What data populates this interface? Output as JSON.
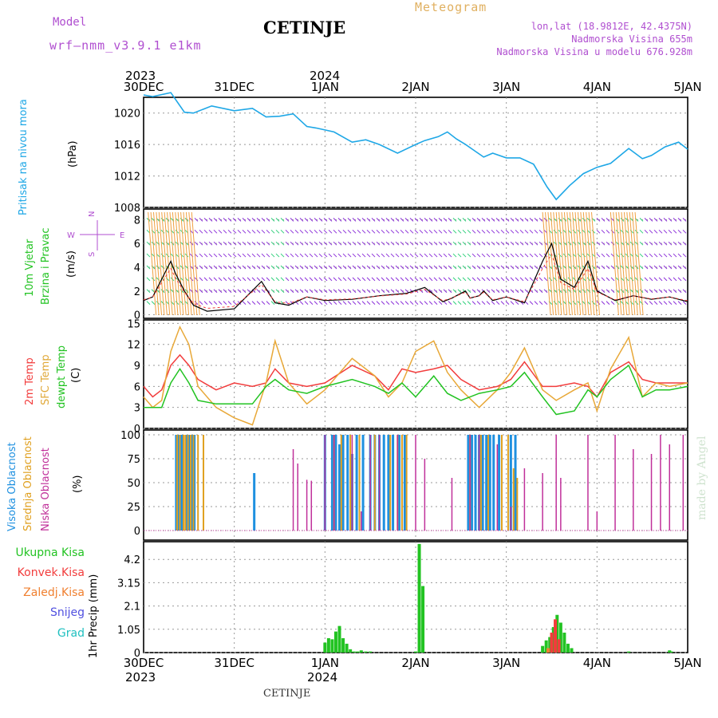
{
  "header": {
    "model_label": "Model",
    "model_name": "wrf—nmm_v3.9.1 e1km",
    "station": "CETINJE",
    "meteogram": "Meteogram",
    "lonlat": "lon,lat (18.9812E, 42.4375N)",
    "elevation": "Nadmorska Visina 655m",
    "model_elevation": "Nadmorska Visina u modelu 676.928m"
  },
  "footer_station": "CETINJE",
  "watermark": "made by Angel",
  "colors": {
    "pressure": "#1ea7e6",
    "temp2m": "#f23c3c",
    "sfc": "#e8a838",
    "dew": "#22c322",
    "purple": "#b04fd0",
    "total": "#22c322",
    "convective": "#f23c3c",
    "frozen": "#f08030",
    "snow": "#5050e0",
    "grad": "#20c0c0",
    "high_cloud": "#1e90e0",
    "mid_cloud": "#e0a020",
    "low_cloud": "#c0309a"
  },
  "top_axis": {
    "year_left": "2023",
    "year_mid": "2024",
    "labels": [
      "30DEC",
      "31DEC",
      "1JAN",
      "2JAN",
      "3JAN",
      "4JAN",
      "5JAN"
    ]
  },
  "bottom_axis": {
    "year_left": "2023",
    "year_mid": "2024",
    "labels": [
      "30DEC",
      "31DEC",
      "1JAN",
      "2JAN",
      "3JAN",
      "4JAN",
      "5JAN"
    ]
  },
  "panels": {
    "pressure": {
      "title": "Pritisak na nivou mora",
      "unit": "(hPa)",
      "ticks": [
        "1020",
        "1016",
        "1012",
        "1008"
      ]
    },
    "wind": {
      "title1": "10m Vjetar",
      "title2": "Brzina i Pravac",
      "unit": "(m/s)",
      "compass_n": "N",
      "compass_s": "S",
      "compass_w": "W",
      "compass_e": "E",
      "ticks": [
        "8",
        "6",
        "4",
        "2",
        "0"
      ]
    },
    "temp": {
      "title1": "2m Temp",
      "title2": "SFC Temp",
      "title3": "dewpt Temp",
      "unit": "(C)",
      "ticks": [
        "15",
        "12",
        "9",
        "6",
        "3",
        "0"
      ]
    },
    "cloud": {
      "title1": "Visoka Oblacnost",
      "title2": "Srednja Oblacnost",
      "title3": "Niska Oblacnost",
      "unit": "(%)",
      "ticks": [
        "100",
        "75",
        "50",
        "25",
        "0"
      ]
    },
    "precip": {
      "legend": [
        "Ukupna Kisa",
        "Konvek.Kisa",
        "Zaledj.Kisa",
        "Snijeg",
        "Grad"
      ],
      "unit": "1hr Precip (mm)",
      "ticks": [
        "4.2",
        "3.15",
        "2.1",
        "1.05",
        "0"
      ]
    }
  },
  "chart_data": {
    "type": "line",
    "x_range_days": [
      "30DEC 2023",
      "5JAN 2024"
    ],
    "pressure": {
      "ylabel": "Pritisak na nivou mora (hPa)",
      "ylim": [
        1008,
        1022
      ],
      "x": [
        0,
        0.1,
        0.3,
        0.45,
        0.55,
        0.75,
        1.0,
        1.2,
        1.35,
        1.5,
        1.65,
        1.8,
        1.9,
        2.1,
        2.3,
        2.45,
        2.6,
        2.8,
        3.0,
        3.1,
        3.25,
        3.35,
        3.45,
        3.55,
        3.65,
        3.75,
        3.85,
        4.0,
        4.15,
        4.3,
        4.45,
        4.55,
        4.7,
        4.85,
        5.0,
        5.15,
        5.35,
        5.5,
        5.6,
        5.75,
        5.9,
        6.0
      ],
      "y": [
        1022.3,
        1022.1,
        1022.6,
        1020.1,
        1020.0,
        1020.9,
        1020.3,
        1020.6,
        1019.5,
        1019.6,
        1019.9,
        1018.3,
        1018.1,
        1017.6,
        1016.3,
        1016.6,
        1016.0,
        1014.9,
        1016.0,
        1016.5,
        1017.0,
        1017.6,
        1016.7,
        1016.0,
        1015.2,
        1014.4,
        1014.9,
        1014.3,
        1014.3,
        1013.5,
        1010.6,
        1009.0,
        1010.8,
        1012.3,
        1013.1,
        1013.6,
        1015.5,
        1014.2,
        1014.6,
        1015.7,
        1016.3,
        1015.4
      ]
    },
    "wind_speed": {
      "ylabel": "10m Vjetar Brzina i Pravac (m/s)",
      "ylim": [
        0,
        9
      ],
      "x": [
        0,
        0.1,
        0.2,
        0.3,
        0.35,
        0.45,
        0.55,
        0.7,
        1.0,
        1.3,
        1.45,
        1.6,
        1.8,
        2.0,
        2.3,
        2.6,
        2.9,
        3.1,
        3.3,
        3.4,
        3.5,
        3.55,
        3.6,
        3.7,
        3.75,
        3.85,
        4.0,
        4.2,
        4.4,
        4.5,
        4.6,
        4.75,
        4.9,
        5.0,
        5.2,
        5.4,
        5.6,
        5.8,
        6.0
      ],
      "y": [
        1.2,
        1.5,
        3.0,
        4.5,
        3.5,
        2.0,
        0.8,
        0.3,
        0.5,
        2.8,
        1.0,
        0.8,
        1.5,
        1.2,
        1.3,
        1.6,
        1.8,
        2.3,
        1.1,
        1.4,
        1.8,
        2.0,
        1.4,
        1.6,
        2.0,
        1.2,
        1.5,
        1.0,
        4.5,
        6.0,
        3.0,
        2.3,
        4.5,
        2.0,
        1.2,
        1.6,
        1.3,
        1.5,
        1.1
      ]
    },
    "temperature": {
      "ylabel": "(C)",
      "ylim": [
        0,
        15
      ],
      "x": [
        0,
        0.1,
        0.2,
        0.3,
        0.4,
        0.5,
        0.6,
        0.8,
        1.0,
        1.2,
        1.35,
        1.45,
        1.6,
        1.8,
        2.0,
        2.3,
        2.55,
        2.7,
        2.85,
        3.0,
        3.2,
        3.35,
        3.5,
        3.7,
        3.9,
        4.05,
        4.2,
        4.4,
        4.55,
        4.75,
        4.9,
        5.0,
        5.15,
        5.35,
        5.5,
        5.65,
        5.8,
        6.0
      ],
      "series": [
        {
          "name": "2m Temp",
          "y": [
            6.0,
            4.5,
            5.5,
            9.0,
            10.5,
            9.0,
            7.0,
            5.5,
            6.5,
            6.0,
            6.5,
            8.5,
            6.5,
            6.0,
            6.5,
            9.0,
            7.5,
            5.5,
            8.5,
            8.0,
            8.5,
            9.0,
            7.0,
            5.5,
            6.0,
            7.0,
            9.5,
            6.0,
            6.0,
            6.5,
            6.0,
            4.5,
            8.0,
            9.5,
            7.0,
            6.5,
            6.5,
            6.5
          ]
        },
        {
          "name": "SFC Temp",
          "y": [
            4.5,
            3.0,
            4.0,
            11.0,
            14.5,
            12.0,
            6.0,
            3.0,
            1.5,
            0.5,
            6.5,
            12.5,
            6.5,
            3.5,
            5.5,
            10.0,
            7.5,
            4.5,
            6.5,
            11.0,
            12.5,
            8.0,
            5.5,
            3.0,
            5.5,
            8.0,
            11.5,
            5.5,
            4.0,
            5.5,
            6.5,
            2.5,
            8.5,
            13.0,
            4.5,
            6.5,
            6.0,
            6.5
          ]
        },
        {
          "name": "dewpt Temp",
          "y": [
            3.0,
            3.0,
            3.0,
            6.5,
            8.5,
            6.5,
            4.0,
            3.5,
            3.5,
            3.5,
            6.0,
            7.0,
            5.5,
            5.0,
            6.0,
            7.0,
            6.0,
            5.0,
            6.5,
            4.5,
            7.5,
            5.0,
            4.0,
            5.0,
            5.5,
            6.0,
            8.0,
            4.5,
            2.0,
            2.5,
            5.5,
            4.5,
            7.0,
            9.0,
            4.5,
            5.5,
            5.5,
            6.0
          ]
        }
      ]
    },
    "clouds": {
      "ylabel": "(%)",
      "ylim": [
        0,
        100
      ],
      "series": [
        {
          "name": "Visoka Oblacnost",
          "x": [
            0.36,
            0.38,
            0.41,
            0.43,
            0.47,
            0.5,
            0.53,
            0.56,
            1.22,
            2.0,
            2.08,
            2.12,
            2.16,
            2.2,
            2.25,
            2.3,
            2.35,
            2.42,
            2.5,
            2.55,
            2.6,
            2.65,
            2.7,
            2.75,
            2.82,
            2.88,
            3.58,
            3.62,
            3.66,
            3.7,
            3.74,
            3.78,
            3.82,
            3.86,
            3.92,
            4.05,
            4.1
          ],
          "y": [
            100,
            100,
            100,
            100,
            100,
            100,
            100,
            100,
            60,
            100,
            100,
            100,
            90,
            100,
            100,
            80,
            100,
            100,
            100,
            100,
            100,
            100,
            100,
            100,
            100,
            100,
            100,
            100,
            100,
            100,
            100,
            100,
            100,
            100,
            100,
            100,
            100
          ]
        },
        {
          "name": "Srednja Oblacnost",
          "x": [
            0.37,
            0.4,
            0.44,
            0.46,
            0.49,
            0.52,
            0.55,
            0.6,
            0.66,
            2.1,
            2.18,
            2.28,
            2.38,
            2.55,
            2.72,
            2.8,
            2.85,
            2.9,
            3.6,
            3.72,
            3.8,
            3.95,
            4.02,
            4.08,
            4.12
          ],
          "y": [
            100,
            100,
            100,
            100,
            100,
            100,
            100,
            100,
            100,
            100,
            100,
            100,
            100,
            100,
            100,
            100,
            100,
            100,
            100,
            100,
            100,
            100,
            100,
            65,
            55
          ]
        },
        {
          "name": "Niska Oblacnost",
          "x": [
            1.65,
            1.7,
            1.8,
            1.85,
            2.0,
            2.1,
            2.3,
            2.4,
            2.5,
            2.6,
            2.8,
            3.0,
            3.1,
            3.4,
            3.6,
            3.7,
            3.9,
            4.05,
            4.2,
            4.4,
            4.55,
            4.6,
            4.9,
            5.0,
            5.2,
            5.4,
            5.6,
            5.7,
            5.8,
            5.95
          ],
          "y": [
            85,
            70,
            53,
            52,
            100,
            100,
            100,
            20,
            100,
            100,
            100,
            100,
            75,
            55,
            100,
            100,
            90,
            25,
            65,
            60,
            100,
            55,
            100,
            20,
            100,
            85,
            80,
            100,
            90,
            100
          ]
        }
      ]
    },
    "precipitation": {
      "ylabel": "1hr Precip (mm)",
      "ylim": [
        0,
        5
      ],
      "series": [
        {
          "name": "Ukupna Kisa",
          "x": [
            2.0,
            2.04,
            2.08,
            2.12,
            2.16,
            2.2,
            2.24,
            2.28,
            2.32,
            2.36,
            2.4,
            2.45,
            2.5,
            3.0,
            3.04,
            3.08,
            4.4,
            4.44,
            4.48,
            4.52,
            4.56,
            4.6,
            4.64,
            4.68,
            4.72,
            5.35,
            5.8,
            5.82
          ],
          "y": [
            0.45,
            0.65,
            0.6,
            0.95,
            1.2,
            0.65,
            0.4,
            0.15,
            0.05,
            0.05,
            0.1,
            0.05,
            0.05,
            0.05,
            4.9,
            3.0,
            0.3,
            0.55,
            0.7,
            1.15,
            1.7,
            1.35,
            0.9,
            0.4,
            0.2,
            0.05,
            0.1,
            0.05
          ]
        },
        {
          "name": "Konvek.Kisa",
          "x": [
            4.5,
            4.54,
            4.58
          ],
          "y": [
            0.9,
            1.5,
            0.6
          ]
        },
        {
          "name": "Zaledj.Kisa",
          "x": [
            4.46
          ],
          "y": [
            0.2
          ]
        },
        {
          "name": "Snijeg",
          "x": [],
          "y": []
        },
        {
          "name": "Grad",
          "x": [],
          "y": []
        }
      ]
    }
  }
}
